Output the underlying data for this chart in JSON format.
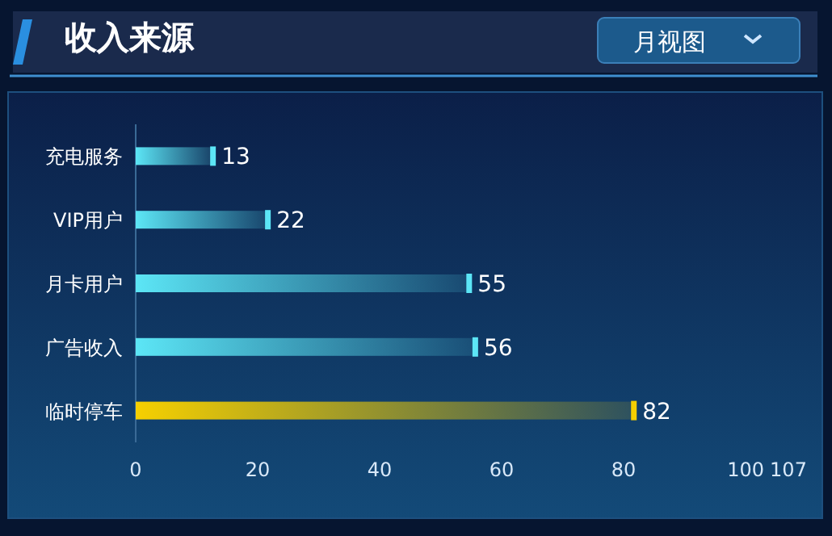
{
  "chart_data": {
    "type": "bar",
    "orientation": "horizontal",
    "title": "收入来源",
    "annotations": [
      "月视图"
    ],
    "categories": [
      "充电服务",
      "VIP用户",
      "月卡用户",
      "广告收入",
      "临时停车"
    ],
    "values": [
      13,
      22,
      55,
      56,
      82
    ],
    "colors": [
      "#5ce6f6",
      "#5ce6f6",
      "#5ce6f6",
      "#5ce6f6",
      "#f6d000"
    ],
    "xlim": [
      0,
      107
    ],
    "xticks": [
      0,
      20,
      40,
      60,
      80,
      100,
      107
    ],
    "data_labels": true,
    "grid": false
  }
}
